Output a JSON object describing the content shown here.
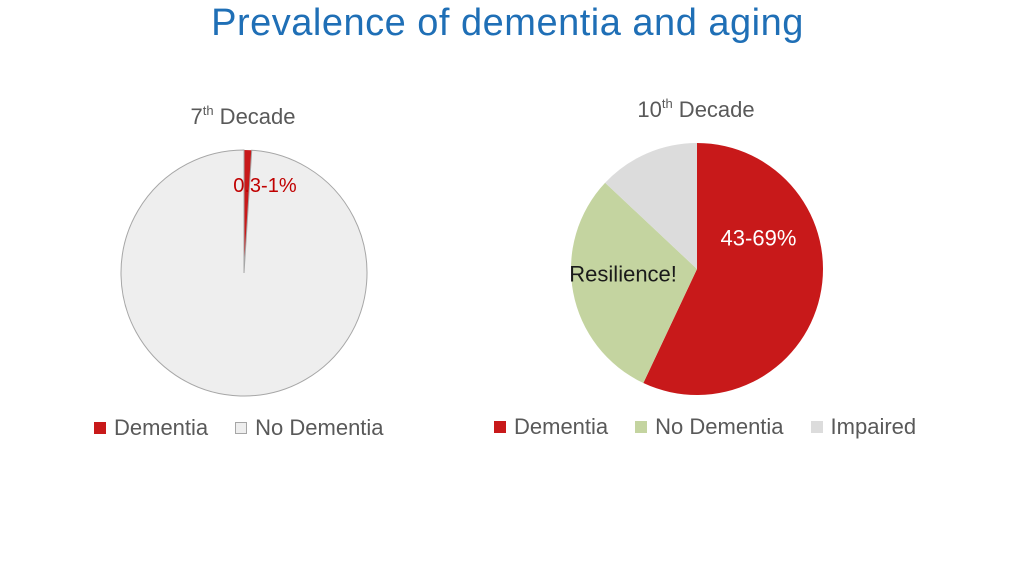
{
  "slide": {
    "title": "Prevalence of dementia and aging"
  },
  "chart_data": [
    {
      "type": "pie",
      "title_main": "7",
      "title_sup": "th",
      "title_rest": " Decade",
      "slices": [
        {
          "label": "Dementia",
          "value": 1,
          "color": "#c8191a",
          "annotation": "0.3-1%",
          "annotation_color": "#c00000"
        },
        {
          "label": "No Dementia",
          "value": 99,
          "color": "#eeeeee",
          "outline": "#a6a6a6",
          "annotation": "",
          "annotation_color": ""
        }
      ],
      "legend_position": "bottom"
    },
    {
      "type": "pie",
      "title_main": "10",
      "title_sup": "th",
      "title_rest": " Decade",
      "slices": [
        {
          "label": "Dementia",
          "value": 57,
          "color": "#c8191a",
          "annotation": "43-69%",
          "annotation_color": "#ffffff"
        },
        {
          "label": "No Dementia",
          "value": 30,
          "color": "#c4d4a0",
          "annotation": "Resilience!",
          "annotation_color": "#1a1a1a"
        },
        {
          "label": "Impaired",
          "value": 13,
          "color": "#dcdcdc",
          "annotation": "",
          "annotation_color": ""
        }
      ],
      "legend_position": "bottom"
    }
  ]
}
